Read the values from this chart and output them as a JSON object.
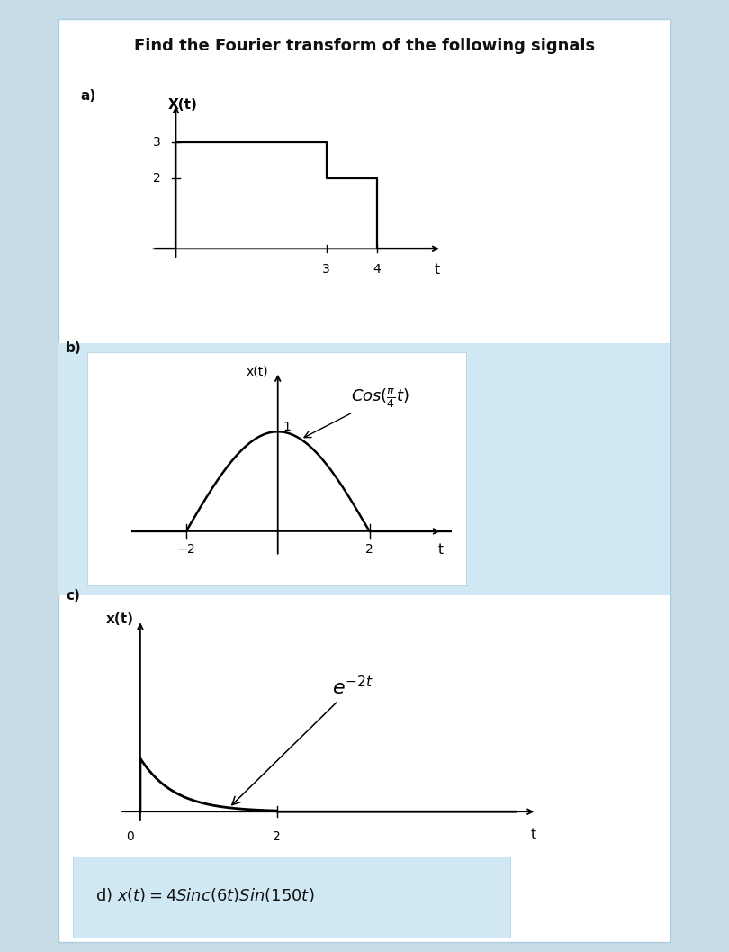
{
  "title": "Find the Fourier transform of the following signals",
  "title_fontsize": 13,
  "bg_page": "#c8dce8",
  "bg_white": "#ffffff",
  "bg_light_blue": "#d0e8f4",
  "text_color": "#111111",
  "panel_a": {
    "label": "a)",
    "ylabel": "X(t)",
    "t_label": "t",
    "xlim": [
      -0.6,
      5.5
    ],
    "ylim": [
      -0.5,
      4.2
    ]
  },
  "panel_b": {
    "label": "b)",
    "ylabel": "x(t)",
    "t_label": "t",
    "xlim": [
      -3.2,
      3.8
    ],
    "ylim": [
      -0.4,
      1.7
    ]
  },
  "panel_c": {
    "label": "c)",
    "ylabel": "x(t)",
    "t_label": "t",
    "xlim": [
      -0.4,
      6.0
    ],
    "ylim": [
      -0.4,
      3.8
    ]
  },
  "panel_d": {
    "equation": "d) $x(t) = 4Sinc(6t)Sin(150t)$"
  }
}
